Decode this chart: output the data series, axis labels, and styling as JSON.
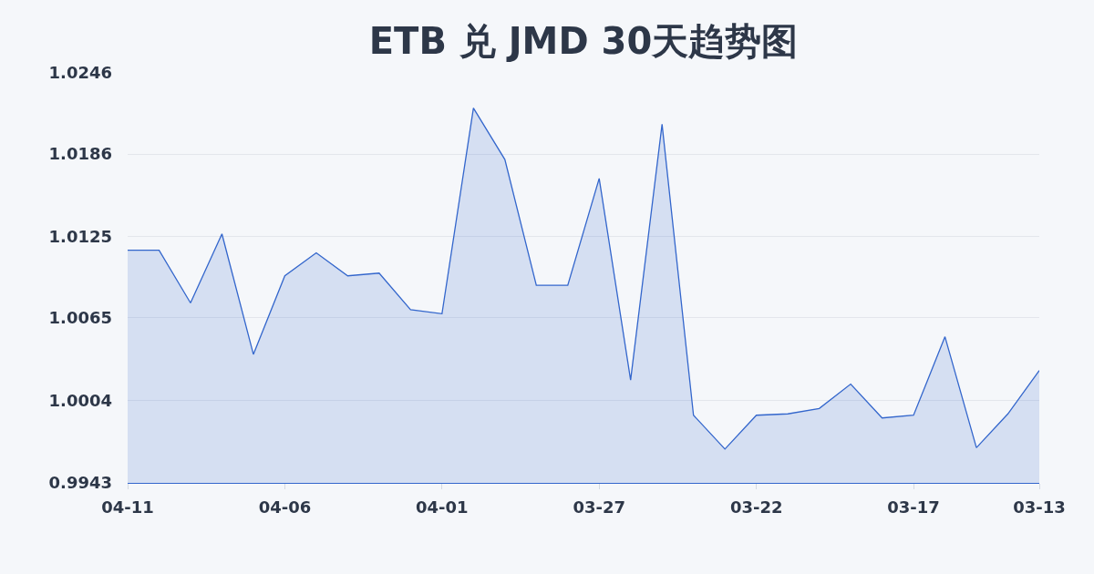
{
  "chart_data": {
    "type": "area",
    "title": "ETB 兑 JMD 30天趋势图",
    "categories": [
      "04-11",
      null,
      null,
      null,
      null,
      "04-06",
      null,
      null,
      null,
      null,
      "04-01",
      null,
      null,
      null,
      null,
      "03-27",
      null,
      null,
      null,
      null,
      "03-22",
      null,
      null,
      null,
      null,
      "03-17",
      null,
      null,
      null,
      "03-13"
    ],
    "series": [
      {
        "color": "#3366cc",
        "values": [
          1.0115,
          1.0115,
          1.0076,
          1.0127,
          1.0038,
          1.0096,
          1.0113,
          1.0096,
          1.0098,
          1.0071,
          1.0068,
          1.022,
          1.0182,
          1.0089,
          1.0089,
          1.0168,
          1.0019,
          1.0208,
          0.9993,
          0.9968,
          0.9993,
          0.9994,
          0.9998,
          1.0016,
          0.9991,
          0.9993,
          1.0051,
          0.9969,
          0.9994,
          1.0026
        ]
      }
    ],
    "ylim": [
      0.9943,
      1.0246
    ],
    "yticks": [
      0.9943,
      1.0004,
      1.0065,
      1.0125,
      1.0186,
      1.0246
    ],
    "grid": "y"
  }
}
